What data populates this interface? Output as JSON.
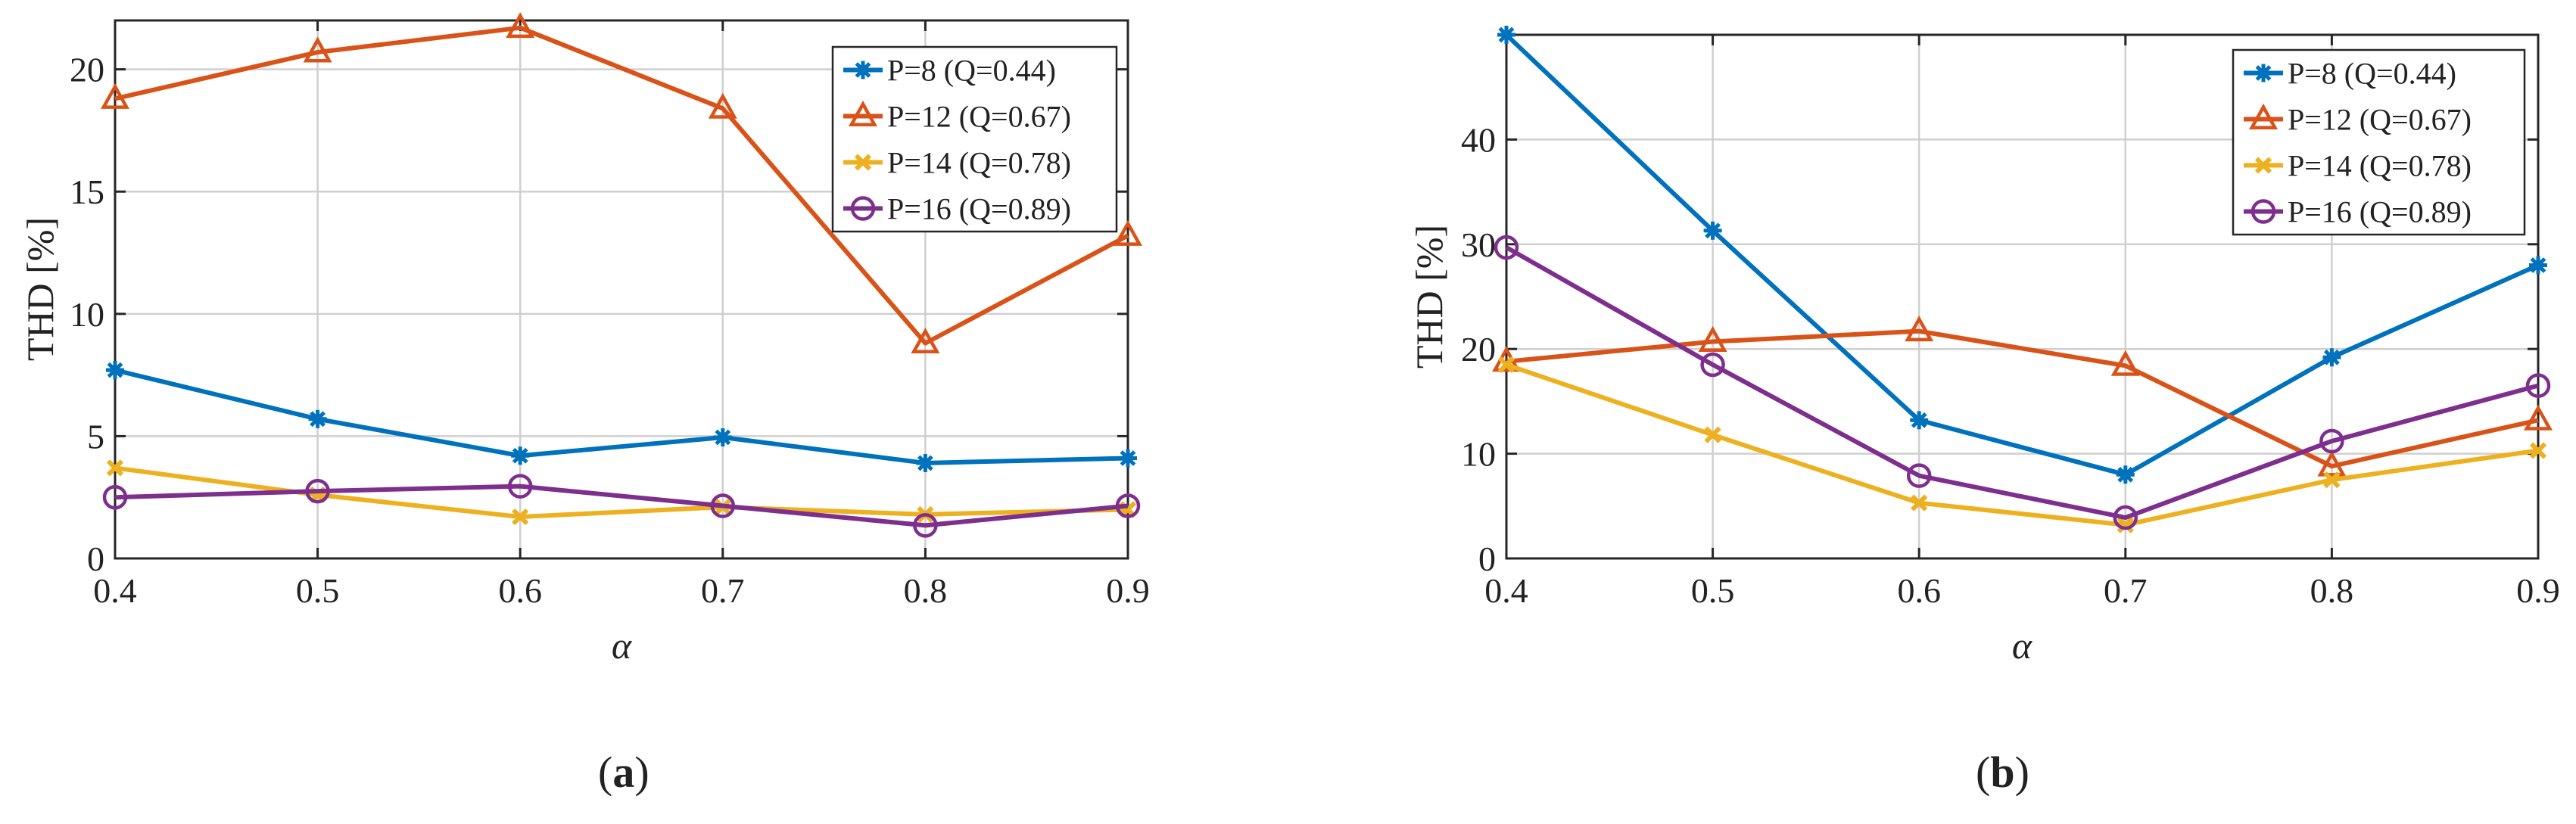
{
  "chart_data": [
    {
      "type": "line",
      "panel": "a",
      "caption_letter": "a",
      "title": "",
      "xlabel": "α",
      "ylabel": "THD [%]",
      "x": [
        0.4,
        0.5,
        0.6,
        0.7,
        0.8,
        0.9
      ],
      "xticks": [
        "0.4",
        "0.5",
        "0.6",
        "0.7",
        "0.8",
        "0.9"
      ],
      "yticks": [
        "0",
        "5",
        "10",
        "15",
        "20"
      ],
      "xlim": [
        0.4,
        0.9
      ],
      "ylim": [
        0,
        22
      ],
      "legend_position": "top-right",
      "series": [
        {
          "name": "P=8 (Q=0.44)",
          "color": "#0072BD",
          "marker": "asterisk",
          "values": [
            7.7,
            5.7,
            4.2,
            4.95,
            3.9,
            4.1
          ]
        },
        {
          "name": "P=12 (Q=0.67)",
          "color": "#D95319",
          "marker": "triangle",
          "values": [
            18.8,
            20.7,
            21.7,
            18.4,
            8.8,
            13.2
          ]
        },
        {
          "name": "P=14 (Q=0.78)",
          "color": "#EDB120",
          "marker": "x",
          "values": [
            3.7,
            2.6,
            1.7,
            2.1,
            1.8,
            2.0
          ]
        },
        {
          "name": "P=16 (Q=0.89)",
          "color": "#7E2F8E",
          "marker": "circle",
          "values": [
            2.5,
            2.75,
            2.95,
            2.15,
            1.35,
            2.15
          ]
        }
      ]
    },
    {
      "type": "line",
      "panel": "b",
      "caption_letter": "b",
      "title": "",
      "xlabel": "α",
      "ylabel": "THD [%]",
      "x": [
        0.4,
        0.5,
        0.6,
        0.7,
        0.8,
        0.9
      ],
      "xticks": [
        "0.4",
        "0.5",
        "0.6",
        "0.7",
        "0.8",
        "0.9"
      ],
      "yticks": [
        "0",
        "10",
        "20",
        "30",
        "40"
      ],
      "xlim": [
        0.4,
        0.9
      ],
      "ylim": [
        0,
        50
      ],
      "legend_position": "top-right",
      "series": [
        {
          "name": "P=8 (Q=0.44)",
          "color": "#0072BD",
          "marker": "asterisk",
          "values": [
            50,
            31.3,
            13.2,
            8.0,
            19.2,
            28.0
          ]
        },
        {
          "name": "P=12 (Q=0.67)",
          "color": "#D95319",
          "marker": "triangle",
          "values": [
            18.8,
            20.7,
            21.7,
            18.4,
            8.8,
            13.2
          ]
        },
        {
          "name": "P=14 (Q=0.78)",
          "color": "#EDB120",
          "marker": "x",
          "values": [
            18.5,
            11.8,
            5.3,
            3.2,
            7.5,
            10.3
          ]
        },
        {
          "name": "P=16 (Q=0.89)",
          "color": "#7E2F8E",
          "marker": "circle",
          "values": [
            29.7,
            18.5,
            7.9,
            3.9,
            11.2,
            16.5
          ]
        }
      ]
    }
  ]
}
